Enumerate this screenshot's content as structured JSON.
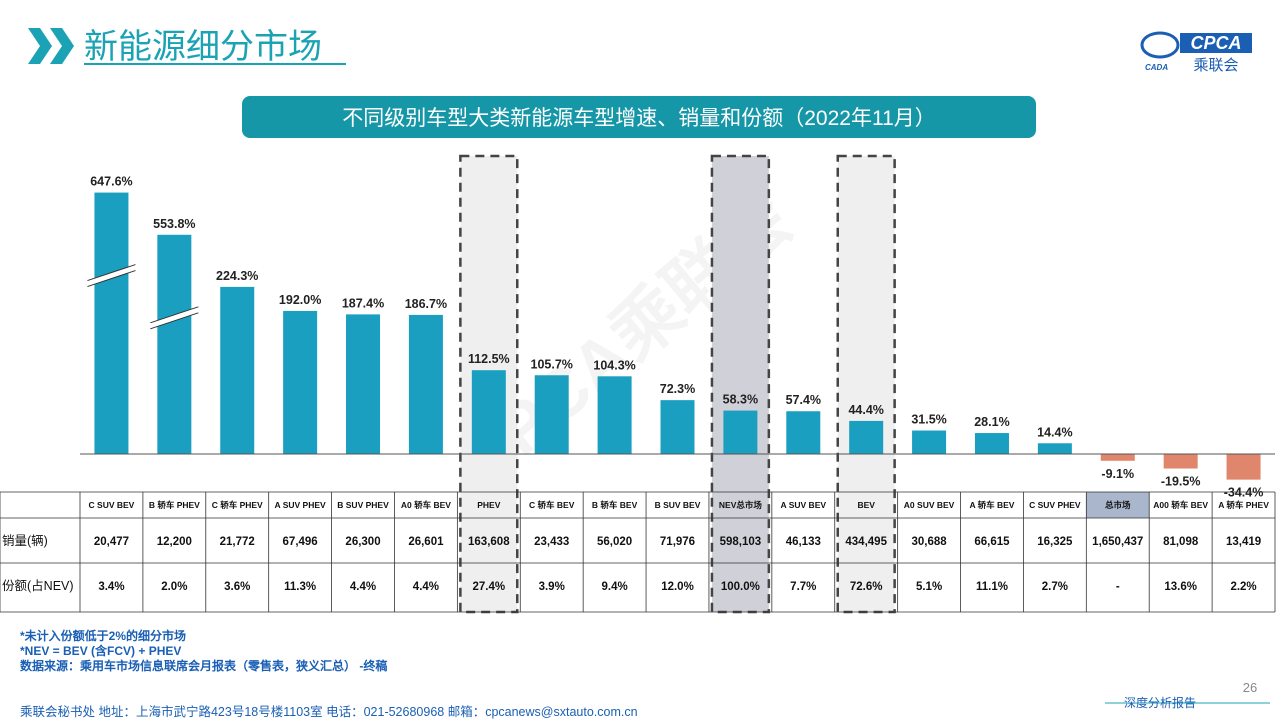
{
  "header": {
    "title": "新能源细分市场",
    "logo_main": "CPCA",
    "logo_sub": "乘联会",
    "logo_small": "CADA"
  },
  "watermark": "CPCA乘联会",
  "chart_data": {
    "type": "bar",
    "title": "不同级别车型大类新能源车型增速、销量和份额（2022年11月）",
    "categories": [
      "C SUV BEV",
      "B 轿车 PHEV",
      "C 轿车 PHEV",
      "A SUV PHEV",
      "B SUV PHEV",
      "A0 轿车 BEV",
      "PHEV",
      "C 轿车 BEV",
      "B 轿车 BEV",
      "B SUV BEV",
      "NEV总市场",
      "A SUV BEV",
      "BEV",
      "A0 SUV BEV",
      "A 轿车 BEV",
      "C SUV PHEV",
      "总市场",
      "A00 轿车 BEV",
      "A 轿车 PHEV"
    ],
    "values": [
      647.6,
      553.8,
      224.3,
      192.0,
      187.4,
      186.7,
      112.5,
      105.7,
      104.3,
      72.3,
      58.3,
      57.4,
      44.4,
      31.5,
      28.1,
      14.4,
      -9.1,
      -19.5,
      -34.4
    ],
    "value_labels": [
      "647.6%",
      "553.8%",
      "224.3%",
      "192.0%",
      "187.4%",
      "186.7%",
      "112.5%",
      "105.7%",
      "104.3%",
      "72.3%",
      "58.3%",
      "57.4%",
      "44.4%",
      "31.5%",
      "28.1%",
      "14.4%",
      "-9.1%",
      "-19.5%",
      "-34.4%"
    ],
    "color": "#1a9fc0",
    "negative_color": "#e0866c",
    "broken_bars": [
      0,
      1
    ],
    "highlight_columns": [
      6,
      10,
      12
    ],
    "filled_highlight": [
      10
    ],
    "shaded_header": [
      16
    ]
  },
  "table": {
    "rows": [
      {
        "label": "销量(辆)",
        "cells": [
          "20,477",
          "12,200",
          "21,772",
          "67,496",
          "26,300",
          "26,601",
          "163,608",
          "23,433",
          "56,020",
          "71,976",
          "598,103",
          "46,133",
          "434,495",
          "30,688",
          "66,615",
          "16,325",
          "1,650,437",
          "81,098",
          "13,419"
        ]
      },
      {
        "label": "份额(占NEV)",
        "cells": [
          "3.4%",
          "2.0%",
          "3.6%",
          "11.3%",
          "4.4%",
          "4.4%",
          "27.4%",
          "3.9%",
          "9.4%",
          "12.0%",
          "100.0%",
          "7.7%",
          "72.6%",
          "5.1%",
          "11.1%",
          "2.7%",
          "-",
          "13.6%",
          "2.2%"
        ]
      }
    ]
  },
  "notes": [
    "*未计入份额低于2%的细分市场",
    "*NEV = BEV (含FCV) + PHEV",
    "数据来源：乘用车市场信息联席会月报表（零售表，狭义汇总） -终稿"
  ],
  "footer": {
    "address": "乘联会秘书处   地址：上海市武宁路423号18号楼1103室  电话：021-52680968   邮箱：cpcanews@sxtauto.com.cn",
    "report": "深度分析报告",
    "page": "26"
  }
}
